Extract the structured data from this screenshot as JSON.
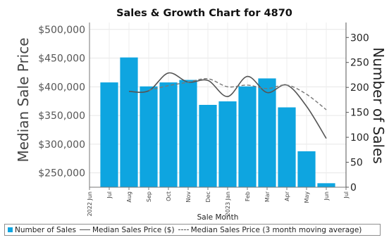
{
  "chart_data": {
    "type": "bar",
    "title": "Sales & Growth Chart for 4870",
    "xlabel": "Sale Month",
    "y_left_label": "Median Sale Price",
    "y_right_label": "Number of Sales",
    "x_ticks": [
      "2022 Jun",
      "Jul",
      "Aug",
      "Sep",
      "Oct",
      "Nov",
      "Dec",
      "2023 Jan",
      "Feb",
      "Mar",
      "Apr",
      "May",
      "Jun",
      "Jul"
    ],
    "y_left_ticks": [
      "$250,000",
      "$300,000",
      "$350,000",
      "$400,000",
      "$450,000",
      "$500,000"
    ],
    "y_left_tick_values": [
      250000,
      300000,
      350000,
      400000,
      450000,
      500000
    ],
    "y_left_range": [
      225000,
      512000
    ],
    "y_right_ticks": [
      "0",
      "50",
      "100",
      "150",
      "200",
      "250",
      "300"
    ],
    "y_right_tick_values": [
      0,
      50,
      100,
      150,
      200,
      250,
      300
    ],
    "y_right_range": [
      0,
      330
    ],
    "categories": [
      "Jul",
      "Aug",
      "Sep",
      "Oct",
      "Nov",
      "Dec",
      "2023 Jan",
      "Feb",
      "Mar",
      "Apr",
      "May",
      "Jun"
    ],
    "series": [
      {
        "name": "Number of Sales",
        "axis": "right",
        "kind": "bar",
        "color": "#0ea5e0",
        "values": [
          210,
          260,
          202,
          210,
          215,
          165,
          172,
          202,
          218,
          160,
          72,
          8
        ]
      },
      {
        "name": "Median Sales Price ($)",
        "axis": "left",
        "kind": "line",
        "color": "#555555",
        "values": [
          null,
          392000,
          393000,
          424000,
          408000,
          411000,
          383000,
          418000,
          390000,
          403000,
          366000,
          310000
        ]
      },
      {
        "name": "Median Sales Price (3 month moving average)",
        "axis": "left",
        "kind": "dashed-line",
        "color": "#777777",
        "values": [
          null,
          null,
          394000,
          402000,
          408000,
          414000,
          400000,
          403000,
          397000,
          403000,
          387000,
          360000
        ]
      }
    ],
    "grid": true,
    "legend_position": "bottom"
  },
  "legend": {
    "bars": "Number of Sales",
    "line": "Median Sales Price ($)",
    "dashed": "Median Sales Price (3 month moving average)"
  },
  "colors": {
    "bar": "#0ea5e0",
    "line": "#555555",
    "dashed": "#777777"
  }
}
